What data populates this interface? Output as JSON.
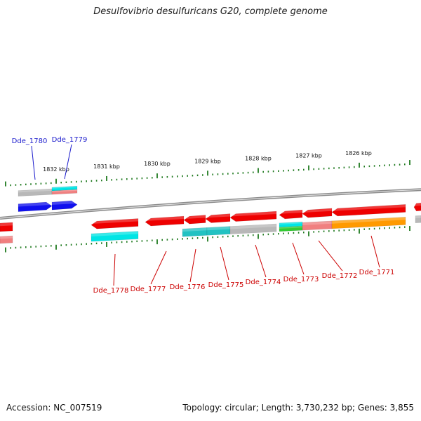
{
  "title": "Desulfovibrio desulfuricans G20, complete genome",
  "footer": {
    "accession": "Accession: NC_007519",
    "summary": "Topology: circular; Length: 3,730,232 bp; Genes: 3,855"
  },
  "ticks": [
    "1832 kbp",
    "1831 kbp",
    "1830 kbp",
    "1829 kbp",
    "1828 kbp",
    "1827 kbp",
    "1826 kbp"
  ],
  "colors": {
    "backbone": "#8c8c8c",
    "tick": "#1f7a1f",
    "label_top": "#1a1acc",
    "label_bottom": "#cc0000",
    "gene_red": "#ee0000",
    "gene_blue": "#1010ee",
    "gene_pink": "#f08080",
    "gene_cyan": "#00e5e5",
    "gene_teal": "#22c2c2",
    "gene_gray": "#b8b8b8",
    "gene_orange": "#ff9a00",
    "gene_green": "#33cc33"
  },
  "gene_labels_top": [
    "Dde_1780",
    "Dde_1779"
  ],
  "gene_labels_bottom": [
    "Dde_1778",
    "Dde_1777",
    "Dde_1776",
    "Dde_1775",
    "Dde_1774",
    "Dde_1773",
    "Dde_1772",
    "Dde_1771"
  ]
}
